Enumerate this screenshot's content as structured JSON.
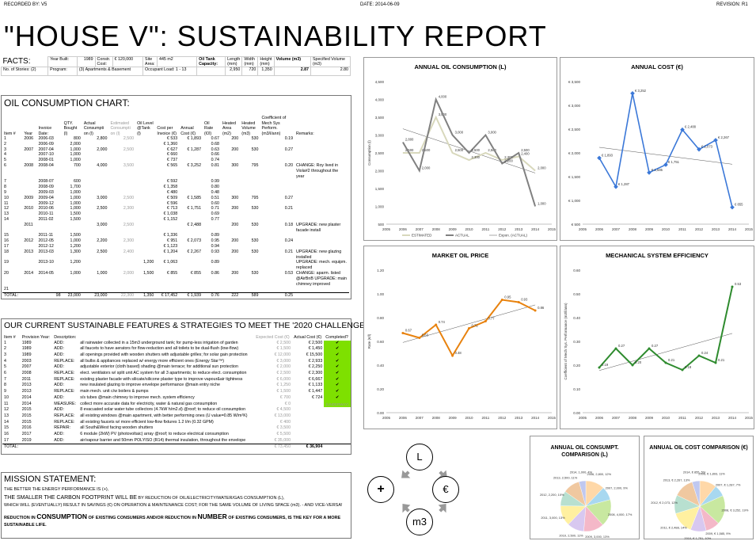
{
  "header": {
    "recorded_by": "RECORDED BY: V5",
    "date": "DATE: 2014-06-09",
    "revision": "REVISION: R1"
  },
  "title": "\"HOUSE V\": SUSTAINABILITY REPORT",
  "facts": {
    "heading": "FACTS:",
    "year_built_label": "Year Built:",
    "year_built": "1989",
    "constr_label": "Constr. Cost:",
    "constr_value": "€ 120,000",
    "site_label": "Site Area:",
    "site_value": "445 m2",
    "oil_tank_label": "Oil Tank Capacity:",
    "length_label": "Length (mm)",
    "width_label": "Width (mm)",
    "height_label": "Height (mm)",
    "volume_label": "Volume (m3)",
    "spec_label": "Specified Volume (m3)",
    "stories": "No. of Stories: (2)",
    "program_label": "Program:",
    "program": "(3) Apartments & Basement",
    "occupant": "Occupant Load: 1 - 13",
    "length": "2,950",
    "width": "720",
    "height": "1,350",
    "volume": "2.87",
    "spec": "2.80"
  },
  "oil_table": {
    "heading": "OIL CONSUMPTION CHART:",
    "headers": [
      "Item #",
      "Year",
      "Invoice Date:",
      "QTY. Bought (l)",
      "Actual Consumpti on (l)",
      "Estimated Consumpti on (l)",
      "Oil Level @Tank (l)",
      "Cost per Invoice (€)",
      "Annual Cost (€)",
      "Oil Rate (€/l)",
      "Heated Area (m2)",
      "Heated Volume (m3)",
      "Coefficient of Mech Sys Perform. (m3/l/ann)",
      "Remarks:"
    ],
    "rows": [
      [
        "1",
        "2006",
        "2006-03",
        "800",
        "2,800",
        "2,500",
        "",
        "€ 533",
        "€ 1,893",
        "0.67",
        "200",
        "530",
        "0.19",
        ""
      ],
      [
        "2",
        "",
        "2006-09",
        "2,000",
        "",
        "",
        "",
        "€ 1,360",
        "",
        "0.68",
        "",
        "",
        "",
        ""
      ],
      [
        "3",
        "2007",
        "2007-04",
        "1,000",
        "2,000",
        "2,500",
        "",
        "€ 627",
        "€ 1,287",
        "0.63",
        "200",
        "530",
        "0.27",
        ""
      ],
      [
        "4",
        "",
        "2007-10",
        "1,000",
        "",
        "",
        "",
        "€ 660",
        "",
        "0.66",
        "",
        "",
        "",
        ""
      ],
      [
        "5",
        "",
        "2008-01",
        "1,000",
        "",
        "",
        "",
        "€ 737",
        "",
        "0.74",
        "",
        "",
        "",
        ""
      ],
      [
        "6",
        "2008",
        "2008-04",
        "700",
        "4,000",
        "3,500",
        "",
        "€ 565",
        "€ 3,252",
        "0.81",
        "300",
        "795",
        "0.20",
        "CHANGE: Roy lived in Viola#2 throughout the year"
      ],
      [
        "7",
        "",
        "2008-07",
        "600",
        "",
        "",
        "",
        "€ 592",
        "",
        "0.99",
        "",
        "",
        "",
        ""
      ],
      [
        "8",
        "",
        "2008-09",
        "1,700",
        "",
        "",
        "",
        "€ 1,358",
        "",
        "0.80",
        "",
        "",
        "",
        ""
      ],
      [
        "9",
        "",
        "2009-03",
        "1,000",
        "",
        "",
        "",
        "€ 480",
        "",
        "0.48",
        "",
        "",
        "",
        ""
      ],
      [
        "10",
        "2009",
        "2009-04",
        "1,000",
        "3,000",
        "2,500",
        "",
        "€ 509",
        "€ 1,585",
        "0.51",
        "300",
        "795",
        "0.27",
        ""
      ],
      [
        "11",
        "",
        "2009-12",
        "1,000",
        "",
        "",
        "",
        "€ 596",
        "",
        "0.60",
        "",
        "",
        "",
        ""
      ],
      [
        "12",
        "2010",
        "2010-06",
        "1,000",
        "2,500",
        "2,300",
        "",
        "€ 713",
        "€ 1,751",
        "0.71",
        "200",
        "530",
        "0.21",
        ""
      ],
      [
        "13",
        "",
        "2010-11",
        "1,500",
        "",
        "",
        "",
        "€ 1,038",
        "",
        "0.69",
        "",
        "",
        "",
        ""
      ],
      [
        "14",
        "",
        "2011-02",
        "1,500",
        "",
        "",
        "",
        "€ 1,152",
        "",
        "0.77",
        "",
        "",
        "",
        ""
      ],
      [
        "",
        "2011",
        "",
        "",
        "3,000",
        "2,500",
        "",
        "",
        "€ 2,488",
        "",
        "200",
        "530",
        "0.18",
        "UPGRADE: new plaster facade install"
      ],
      [
        "15",
        "",
        "2011-11",
        "1,500",
        "",
        "",
        "",
        "€ 1,336",
        "",
        "0.89",
        "",
        "",
        "",
        ""
      ],
      [
        "16",
        "2012",
        "2012-05",
        "1,000",
        "2,200",
        "2,300",
        "",
        "€ 951",
        "€ 2,073",
        "0.95",
        "200",
        "530",
        "0.24",
        ""
      ],
      [
        "17",
        "",
        "2012-12",
        "1,200",
        "",
        "",
        "",
        "€ 1,123",
        "",
        "0.94",
        "",
        "",
        "",
        ""
      ],
      [
        "18",
        "2013",
        "2013-03",
        "1,300",
        "2,500",
        "2,400",
        "",
        "€ 1,204",
        "€ 2,267",
        "0.93",
        "200",
        "530",
        "0.21",
        "UPGRADE: new glazing installed"
      ],
      [
        "19",
        "",
        "2013-10",
        "1,200",
        "",
        "",
        "1,200",
        "€ 1,063",
        "",
        "0.89",
        "",
        "",
        "",
        "UPGRADE: mech. equipm. replaced"
      ],
      [
        "20",
        "2014",
        "2014-05",
        "1,000",
        "1,000",
        "2,000",
        "1,500",
        "€ 855",
        "€ 855",
        "0.86",
        "200",
        "530",
        "0.53",
        "CHANGE: aparm. listed @AirBnB UPGRADE: main chimney improved"
      ],
      [
        "21",
        "",
        "",
        "",
        "",
        "",
        "",
        "",
        "",
        "",
        "",
        "",
        "",
        ""
      ]
    ],
    "totals": [
      "TOTAL:",
      "",
      "",
      "98",
      "23,000",
      "23,000",
      "22,300",
      "1,350",
      "€ 17,452",
      "€ 1,939",
      "0.76",
      "222",
      "589",
      "0.25",
      ""
    ]
  },
  "features": {
    "heading": "OUR CURRENT SUSTAINABLE FEATURES & STRATEGIES TO MEET THE '2020 CHALLENGE':",
    "headers": [
      "Item #",
      "Provision Year:",
      "Description:",
      "",
      "Expected Cost (€)",
      "Actual Cost (€)",
      "Completed?"
    ],
    "rows": [
      [
        "1",
        "1989",
        "ADD:",
        "all rainwater collected in a 15m3 underground tank; for pump-less irrigation of garden",
        "€ 2,500",
        "€ 2,500",
        "✔"
      ],
      [
        "2",
        "1989",
        "ADD:",
        "all faucets to have aerators for flow-reduction and all toilets to be dual-flush (low-flow)",
        "€ 1,500",
        "€ 1,450",
        "✔"
      ],
      [
        "3",
        "1989",
        "ADD:",
        "all openings provided with wooden shutters with adjustable grilles; for solar gain protection",
        "€ 12,000",
        "€ 15,500",
        "✔"
      ],
      [
        "4",
        "2003",
        "REPLACE:",
        "all bulbs & appliances replaced w/ energy more efficient ones (Energy Star™)",
        "€ 3,000",
        "€ 2,933",
        "✔"
      ],
      [
        "5",
        "2007",
        "ADD:",
        "adjustable exterior (cloth based) shading @main terrace; for additional sun protection",
        "€ 2,000",
        "€ 2,250",
        "✔"
      ],
      [
        "6",
        "2008",
        "REPLACE:",
        "elect. ventilators w/ split unit AC system for all 3 apartments; to reduce elect. consumption",
        "€ 2,500",
        "€ 2,300",
        "✔"
      ],
      [
        "7",
        "2011",
        "REPLACE:",
        "existing plaster facade with silicate/silicone plaster type to improve vapour&air tightness",
        "€ 6,000",
        "€ 6,667",
        "✔"
      ],
      [
        "8",
        "2013",
        "ADD:",
        "new insulated glazing to improve envelope performance @main entry niche",
        "€ 1,250",
        "€ 1,133",
        "✔"
      ],
      [
        "9",
        "2013",
        "REPLACE:",
        "main mech. unit c/w boilers & pumps",
        "€ 1,500",
        "€ 1,447",
        "✔"
      ],
      [
        "10",
        "2014",
        "ADD:",
        "s/s tubes @main chimney to improve mech. system efficiency",
        "€ 700",
        "€ 724",
        "✔"
      ],
      [
        "11",
        "2014",
        "MEASURE:",
        "collect more accurate data for electricity, water & natural gas consumption",
        "€ 0",
        "",
        "(UNDERWAY)"
      ],
      [
        "12",
        "2015",
        "ADD:",
        "8 evacuated solar water tube collectors (4.7kW h/m2.d) @roof; to reduce oil consumption",
        "€ 4,500",
        "",
        ""
      ],
      [
        "13",
        "2015",
        "REPLACE:",
        "all existing windows @main apartment, with better performing ones (U value=0.85 W/m²K)",
        "€ 13,000",
        "",
        ""
      ],
      [
        "14",
        "2015",
        "REPLACE:",
        "all existing faucets w/ more efficient low-flow fixtures 1.2 l/m (0.32 GPM)",
        "€ 400",
        "",
        ""
      ],
      [
        "15",
        "2016",
        "REPAIR:",
        "all South&West facing wooden shutters",
        "€ 3,500",
        "",
        ""
      ],
      [
        "16",
        "2017",
        "ADD:",
        "6 module (2kW) PV (photovoltaic) array @roof; to reduce electrical consumption",
        "€ 5,500",
        "",
        ""
      ],
      [
        "17",
        "2019",
        "ADD:",
        "air/vapour barrier and 50mm POLYISO (R14) thermal insulation, throughout the envelope",
        "€ 35,000",
        "",
        ""
      ]
    ],
    "totals": [
      "TOTAL:",
      "",
      "",
      "",
      "€ 73,450",
      "€ 36,904",
      ""
    ]
  },
  "mission": {
    "heading": "MISSION STATEMENT:",
    "l1": "THE BETTER THE ENERGY PERFORMANCE IS (+),",
    "l2a": "THE SMALLER THE CARBON FOOTPRINT WILL BE",
    "l2b": " BY REDUCTION OF OIL/ELECTRICITY/WATER/GAS CONSUMPTION (L),",
    "l3": "WHICH WILL (EVENTUALLY) RESULT IN SAVINGS (€) ON OPERATION & MAINTENANCE COST; FOR THE SAME VOLUME OF LIVING SPACE (m3).   - AND VICE-VERSA!",
    "l4a": "REDUCTION IN ",
    "l4b": "CONSUMPTION",
    "l4c": " OF EXISTING CONSUMERS AND/OR REDUCTION IN ",
    "l4d": "NUMBER",
    "l4e": " OF EXISTING CONSUMERS, IS THE KEY FOR A MORE",
    "l5": "SUSTAINABLE LIFE."
  },
  "diagram": {
    "top": "L",
    "left": "+",
    "right": "€",
    "bottom": "m3"
  },
  "chart_data": [
    {
      "type": "line",
      "title": "ANNUAL OIL CONSUMPTION (L)",
      "ylabel": "Consumption (l)",
      "ylim": [
        500,
        4500
      ],
      "xlim": [
        2005,
        2015
      ],
      "x": [
        2006,
        2007,
        2008,
        2009,
        2010,
        2011,
        2012,
        2013,
        2014
      ],
      "series": [
        {
          "name": "ESTIMATED",
          "values": [
            2500,
            2500,
            3500,
            2500,
            2300,
            2500,
            2300,
            2400,
            2000
          ],
          "color": "#d8d8bc"
        },
        {
          "name": "ACTUAL",
          "values": [
            2800,
            2000,
            4000,
            3000,
            2500,
            3000,
            2200,
            2500,
            1000
          ],
          "color": "#808080"
        }
      ],
      "trend_name": "Expon. (ACTUAL)",
      "labels": [
        "2,800",
        "2,000",
        "4,000",
        "3,000",
        "2,500",
        "3,000",
        "2,200",
        "2,500",
        "1,000"
      ],
      "est_labels": [
        "2,500",
        "2,500",
        "3,500",
        "2,500",
        "2,300",
        "2,500",
        "2,300",
        "2,400",
        "2,000"
      ],
      "yticks": [
        "500",
        "1,000",
        "1,500",
        "2,000",
        "2,500",
        "3,000",
        "3,500",
        "4,000",
        "4,500"
      ],
      "xticks": [
        "2005",
        "2006",
        "2007",
        "2008",
        "2009",
        "2010",
        "2011",
        "2012",
        "2013",
        "2014",
        "2015"
      ]
    },
    {
      "type": "line",
      "title": "ANNUAL COST (€)",
      "ylim": [
        500,
        3500
      ],
      "xlim": [
        2005,
        2015
      ],
      "x": [
        2006,
        2007,
        2008,
        2009,
        2010,
        2011,
        2012,
        2013,
        2014
      ],
      "series": [
        {
          "name": "cost",
          "values": [
            1893,
            1287,
            3252,
            1585,
            1751,
            2488,
            2073,
            2267,
            855
          ],
          "color": "#3b78d8"
        }
      ],
      "labels": [
        "€ 1,893",
        "€ 1,287",
        "€ 3,252",
        "€ 1,585",
        "€ 1,751",
        "€ 2,488",
        "€ 2,073",
        "€ 2,267",
        "€ 855"
      ],
      "yticks": [
        "€ 500",
        "€ 1,000",
        "€ 1,500",
        "€ 2,000",
        "€ 2,500",
        "€ 3,000",
        "€ 3,500"
      ],
      "xticks": [
        "2005",
        "2006",
        "2007",
        "2008",
        "2009",
        "2010",
        "2011",
        "2012",
        "2013",
        "2014",
        "2015"
      ]
    },
    {
      "type": "line",
      "title": "MARKET OIL PRICE",
      "ylabel": "Rate (€/l)",
      "ylim": [
        0,
        1.2
      ],
      "xlim": [
        2005,
        2015
      ],
      "x": [
        2006,
        2007,
        2008,
        2009,
        2010,
        2011,
        2012,
        2013,
        2014
      ],
      "series": [
        {
          "name": "rate",
          "values": [
            0.67,
            0.63,
            0.74,
            0.48,
            0.71,
            0.77,
            0.95,
            0.93,
            0.86
          ],
          "color": "#e8820e"
        }
      ],
      "labels": [
        "0.67",
        "0.63",
        "0.74",
        "0.48",
        "0.71",
        "0.77",
        "0.95",
        "0.93",
        "0.86"
      ],
      "yticks": [
        "0.00",
        "0.20",
        "0.40",
        "0.60",
        "0.80",
        "1.00",
        "1.20"
      ],
      "xticks": [
        "2005",
        "2006",
        "2007",
        "2008",
        "2009",
        "2010",
        "2011",
        "2012",
        "2013",
        "2014",
        "2015"
      ]
    },
    {
      "type": "line",
      "title": "MECHANICAL SYSTEM EFFICIENCY",
      "ylabel": "Coefficient of Mech Sys. Performance (m3/l/ann)",
      "ylim": [
        0,
        0.6
      ],
      "xlim": [
        2005,
        2015
      ],
      "x": [
        2006,
        2007,
        2008,
        2009,
        2010,
        2011,
        2012,
        2013,
        2014
      ],
      "series": [
        {
          "name": "coef",
          "values": [
            0.19,
            0.27,
            0.2,
            0.27,
            0.21,
            0.18,
            0.24,
            0.21,
            0.53
          ],
          "color": "#2e8b2e"
        }
      ],
      "labels": [
        "0.19",
        "0.27",
        "0.20",
        "0.27",
        "0.21",
        "0.18",
        "0.24",
        "0.21",
        "0.53"
      ],
      "yticks": [
        "0.00",
        "0.10",
        "0.20",
        "0.30",
        "0.40",
        "0.50",
        "0.60"
      ],
      "xticks": [
        "2005",
        "2006",
        "2007",
        "2008",
        "2009",
        "2010",
        "2011",
        "2012",
        "2013",
        "2014",
        "2015"
      ]
    },
    {
      "type": "pie",
      "title": "ANNUAL OIL CONSUMPT. COMPARISON (L)",
      "labels": [
        "2006, 2,800, 12%",
        "2007, 2,000, 9%",
        "2008, 4,000, 17%",
        "2009, 3,000, 13%",
        "2010, 2,500, 11%",
        "2011, 3,000, 13%",
        "2012, 2,200, 10%",
        "2013, 2,500, 11%",
        "2014, 1,000, 4%"
      ],
      "values": [
        2800,
        2000,
        4000,
        3000,
        2500,
        3000,
        2200,
        2500,
        1000
      ]
    },
    {
      "type": "pie",
      "title": "ANNUAL OIL COST COMPARISON (€)",
      "labels": [
        "2006, € 1,893, 11%",
        "2007, € 1,287, 7%",
        "2008, € 3,252, 19%",
        "2009, € 1,585, 9%",
        "2010, € 1,751, 10%",
        "2011, € 2,488, 14%",
        "2012, € 2,073, 12%",
        "2013, € 2,267, 13%",
        "2014, € 855, 5%"
      ],
      "values": [
        1893,
        1287,
        3252,
        1585,
        1751,
        2488,
        2073,
        2267,
        855
      ]
    }
  ],
  "pie_colors": [
    "#ffd8a8",
    "#a8d8f0",
    "#c8e8a0",
    "#f4b8c8",
    "#d8c8f0",
    "#fff0a0",
    "#b8e0d0",
    "#f0c8a0",
    "#c0c8f0"
  ]
}
